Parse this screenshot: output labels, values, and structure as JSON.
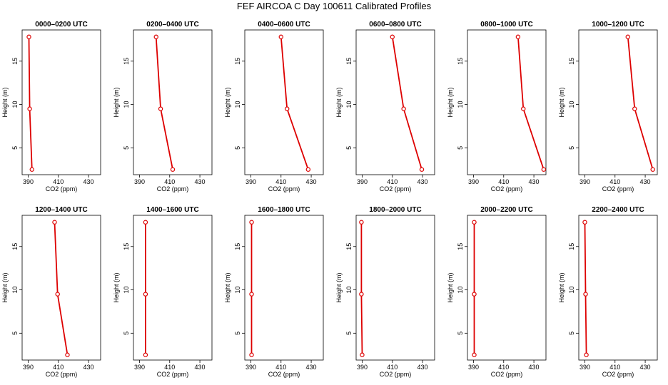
{
  "figure_title": "FEF AIRCOA C  Day 100611  Calibrated Profiles",
  "colors": {
    "series": "#dd0000",
    "axis": "#000000"
  },
  "chart_data": {
    "type": "line",
    "title": "FEF AIRCOA C  Day 100611  Calibrated Profiles",
    "xlabel": "CO2 (ppm)",
    "ylabel": "Height (m)",
    "xlim": [
      386,
      438
    ],
    "ylim": [
      1.9,
      18.6
    ],
    "x_ticks": [
      390,
      410,
      430
    ],
    "y_ticks": [
      5,
      10,
      15
    ],
    "heights": [
      2.5,
      9.5,
      17.8
    ],
    "panels": [
      {
        "title": "0000–0200 UTC",
        "co2": [
          392.5,
          391.0,
          390.5
        ]
      },
      {
        "title": "0200–0400 UTC",
        "co2": [
          412.0,
          404.0,
          401.0
        ]
      },
      {
        "title": "0400–0600 UTC",
        "co2": [
          428.0,
          414.0,
          410.0
        ]
      },
      {
        "title": "0600–0800 UTC",
        "co2": [
          429.5,
          417.5,
          410.0
        ]
      },
      {
        "title": "0800–1000 UTC",
        "co2": [
          436.5,
          423.0,
          419.5
        ]
      },
      {
        "title": "1000–1200 UTC",
        "co2": [
          435.0,
          423.0,
          418.5
        ]
      },
      {
        "title": "1200–1400 UTC",
        "co2": [
          416.0,
          409.5,
          407.5
        ]
      },
      {
        "title": "1400–1600 UTC",
        "co2": [
          394.0,
          394.0,
          394.0
        ]
      },
      {
        "title": "1600–1800 UTC",
        "co2": [
          390.5,
          390.5,
          390.5
        ]
      },
      {
        "title": "1800–2000 UTC",
        "co2": [
          390.0,
          389.5,
          389.5
        ]
      },
      {
        "title": "2000–2200 UTC",
        "co2": [
          390.5,
          390.5,
          390.5
        ]
      },
      {
        "title": "2200–2400 UTC",
        "co2": [
          391.0,
          390.5,
          390.0
        ]
      }
    ]
  }
}
